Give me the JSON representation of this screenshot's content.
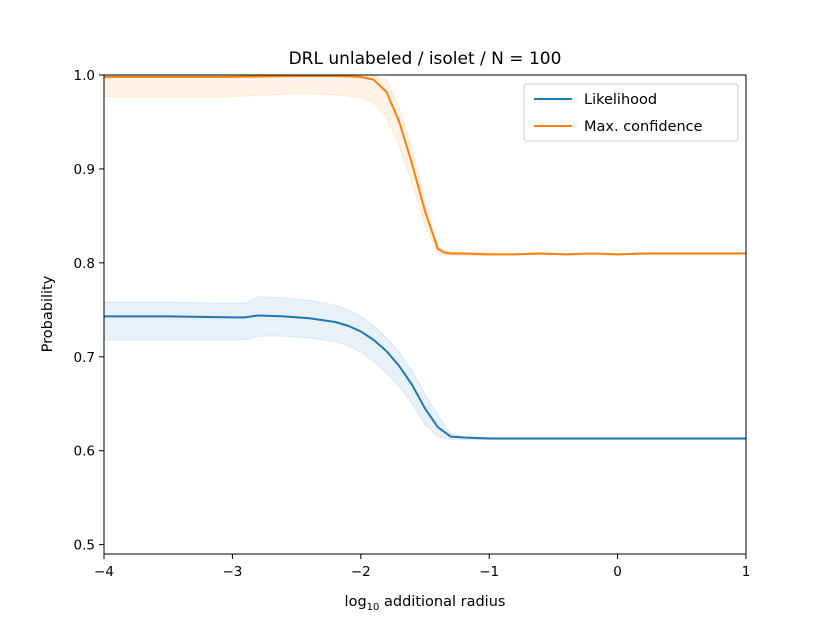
{
  "chart_data": {
    "type": "line",
    "title": "DRL unlabeled / isolet / N = 100",
    "xlabel_prefix": "log",
    "xlabel_sub": "10",
    "xlabel_suffix": " additional radius",
    "ylabel": "Probability",
    "xlim": [
      -4,
      1
    ],
    "ylim": [
      0.49,
      1.0
    ],
    "xticks": [
      -4,
      -3,
      -2,
      -1,
      0,
      1
    ],
    "xtick_labels": [
      "−4",
      "−3",
      "−2",
      "−1",
      "0",
      "1"
    ],
    "yticks": [
      0.5,
      0.6,
      0.7,
      0.8,
      0.9,
      1.0
    ],
    "ytick_labels": [
      "0.5",
      "0.6",
      "0.7",
      "0.8",
      "0.9",
      "1.0"
    ],
    "grid": false,
    "legend_position": "top-right",
    "series": [
      {
        "name": "Likelihood",
        "color": "#1f77b4",
        "band_color": "#1f77b4",
        "x": [
          -4.0,
          -3.5,
          -3.0,
          -2.9,
          -2.8,
          -2.6,
          -2.4,
          -2.2,
          -2.1,
          -2.0,
          -1.9,
          -1.8,
          -1.7,
          -1.6,
          -1.5,
          -1.4,
          -1.3,
          -1.2,
          -1.0,
          -0.5,
          0.0,
          0.5,
          1.0
        ],
        "y": [
          0.743,
          0.743,
          0.742,
          0.742,
          0.744,
          0.743,
          0.741,
          0.737,
          0.733,
          0.727,
          0.718,
          0.706,
          0.69,
          0.67,
          0.645,
          0.625,
          0.615,
          0.614,
          0.613,
          0.613,
          0.613,
          0.613,
          0.613
        ],
        "y_upper": [
          0.758,
          0.758,
          0.757,
          0.757,
          0.764,
          0.763,
          0.76,
          0.755,
          0.75,
          0.743,
          0.733,
          0.72,
          0.705,
          0.685,
          0.66,
          0.638,
          0.618,
          0.615,
          0.614,
          0.614,
          0.614,
          0.614,
          0.614
        ],
        "y_lower": [
          0.718,
          0.718,
          0.718,
          0.718,
          0.722,
          0.722,
          0.72,
          0.716,
          0.712,
          0.705,
          0.695,
          0.683,
          0.668,
          0.65,
          0.628,
          0.615,
          0.612,
          0.612,
          0.612,
          0.612,
          0.612,
          0.612,
          0.612
        ]
      },
      {
        "name": "Max. confidence",
        "color": "#ff7f0e",
        "band_color": "#ff7f0e",
        "x": [
          -4.0,
          -3.5,
          -3.0,
          -2.5,
          -2.2,
          -2.0,
          -1.9,
          -1.8,
          -1.7,
          -1.6,
          -1.5,
          -1.4,
          -1.35,
          -1.3,
          -1.2,
          -1.0,
          -0.8,
          -0.6,
          -0.4,
          -0.2,
          0.0,
          0.2,
          0.4,
          0.6,
          0.8,
          1.0
        ],
        "y": [
          0.998,
          0.998,
          0.998,
          0.999,
          0.999,
          0.998,
          0.995,
          0.982,
          0.95,
          0.905,
          0.855,
          0.815,
          0.811,
          0.81,
          0.81,
          0.809,
          0.809,
          0.81,
          0.809,
          0.81,
          0.809,
          0.81,
          0.81,
          0.81,
          0.81,
          0.81
        ],
        "y_upper": [
          1.0,
          1.0,
          1.0,
          1.0,
          1.0,
          1.0,
          1.0,
          0.995,
          0.965,
          0.92,
          0.865,
          0.818,
          0.813,
          0.812,
          0.811,
          0.81,
          0.81,
          0.811,
          0.81,
          0.811,
          0.81,
          0.811,
          0.811,
          0.811,
          0.811,
          0.811
        ],
        "y_lower": [
          0.977,
          0.977,
          0.977,
          0.98,
          0.979,
          0.976,
          0.97,
          0.955,
          0.925,
          0.885,
          0.84,
          0.81,
          0.808,
          0.808,
          0.808,
          0.808,
          0.808,
          0.809,
          0.808,
          0.809,
          0.808,
          0.809,
          0.809,
          0.809,
          0.809,
          0.809
        ]
      }
    ]
  }
}
